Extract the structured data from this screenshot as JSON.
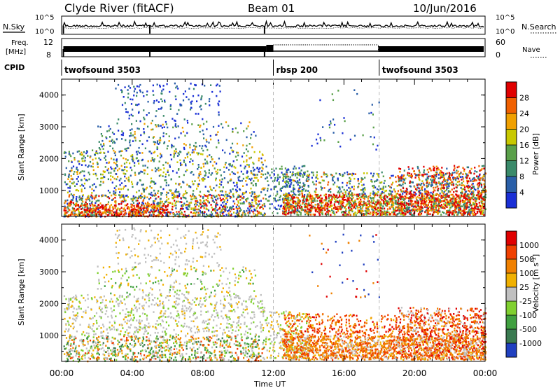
{
  "header": {
    "station": "Clyde River (fitACF)",
    "beam": "Beam 01",
    "date": "10/Jun/2016"
  },
  "noise_panel": {
    "left_label": "N.Sky",
    "right_label": "N.Search",
    "left_ticks": [
      "10^5",
      "10^0"
    ],
    "right_ticks": [
      "10^5",
      "10^0"
    ]
  },
  "freq_panel": {
    "left_label_1": "Freq.",
    "left_label_2": "[MHz]",
    "left_ticks": [
      "12",
      "8"
    ],
    "right_label": "Nave",
    "right_ticks": [
      "60",
      "0"
    ]
  },
  "cpid": {
    "label": "CPID",
    "segments": [
      {
        "name": "twofsound 3503",
        "start_h": 0,
        "end_h": 12
      },
      {
        "name": "rbsp 200",
        "start_h": 12,
        "end_h": 18
      },
      {
        "name": "twofsound 3503",
        "start_h": 18,
        "end_h": 24
      }
    ]
  },
  "x_axis": {
    "label": "Time UT",
    "ticks": [
      "00:00",
      "04:00",
      "08:00",
      "12:00",
      "16:00",
      "20:00",
      "00:00"
    ]
  },
  "chart_data": [
    {
      "type": "heatmap",
      "quantity": "Power",
      "colorbar_label": "Power [dB]",
      "ylabel": "Slant Range [km]",
      "yticks": [
        1000,
        2000,
        3000,
        4000
      ],
      "ylim": [
        180,
        4500
      ],
      "xlim_hours": [
        0,
        24
      ],
      "colorbar_ticks": [
        4,
        8,
        12,
        16,
        20,
        24,
        28
      ],
      "colorbar_colors": [
        "#1a2fd6",
        "#2a5fa8",
        "#3a8a6a",
        "#5aa04a",
        "#c8c800",
        "#f0a000",
        "#f06000",
        "#e00000"
      ],
      "scatter_regions": [
        {
          "t0": 0.0,
          "t1": 11.5,
          "r0": 200,
          "r1": 2500,
          "level": "mixed"
        },
        {
          "t0": 12.5,
          "t1": 24.0,
          "r0": 300,
          "r1": 1400,
          "level": "strong"
        }
      ]
    },
    {
      "type": "heatmap",
      "quantity": "Velocity",
      "colorbar_label": "Velocity [m s^-1]",
      "ylabel": "Slant Range [km]",
      "yticks": [
        1000,
        2000,
        3000,
        4000
      ],
      "ylim": [
        180,
        4500
      ],
      "xlim_hours": [
        0,
        24
      ],
      "colorbar_ticks": [
        1000,
        500,
        100,
        25,
        -25,
        -100,
        -500,
        -1000
      ],
      "colorbar_colors": [
        "#2040c0",
        "#3a7a50",
        "#40a040",
        "#80d030",
        "#c0c0c0",
        "#f0b000",
        "#f08000",
        "#f04000",
        "#e00000"
      ]
    }
  ]
}
